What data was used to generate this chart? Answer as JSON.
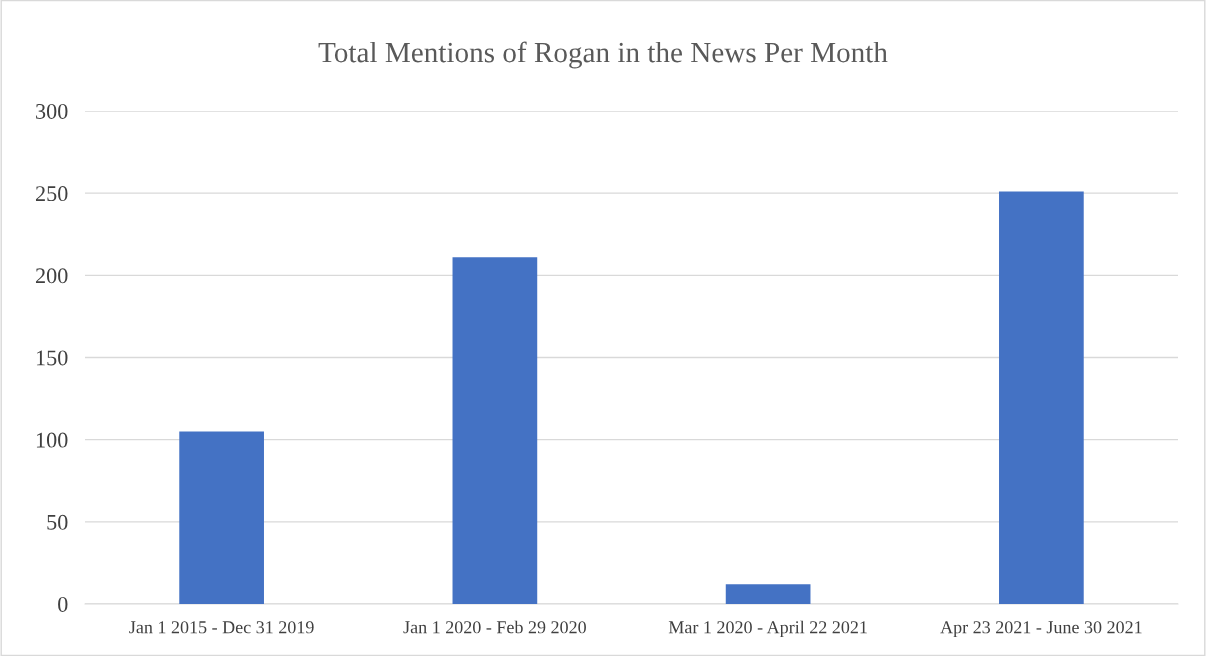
{
  "chart_data": {
    "type": "bar",
    "title": "Total Mentions of Rogan in the News Per Month",
    "categories": [
      "Jan 1 2015 - Dec 31 2019",
      "Jan 1 2020 - Feb 29 2020",
      "Mar 1 2020 - April 22 2021",
      "Apr 23 2021 - June 30 2021"
    ],
    "values": [
      105,
      211,
      12,
      251
    ],
    "color": "#4472c4",
    "ylim": [
      0,
      300
    ],
    "yticks": [
      0,
      50,
      100,
      150,
      200,
      250,
      300
    ],
    "grid": "y",
    "legend": false
  }
}
